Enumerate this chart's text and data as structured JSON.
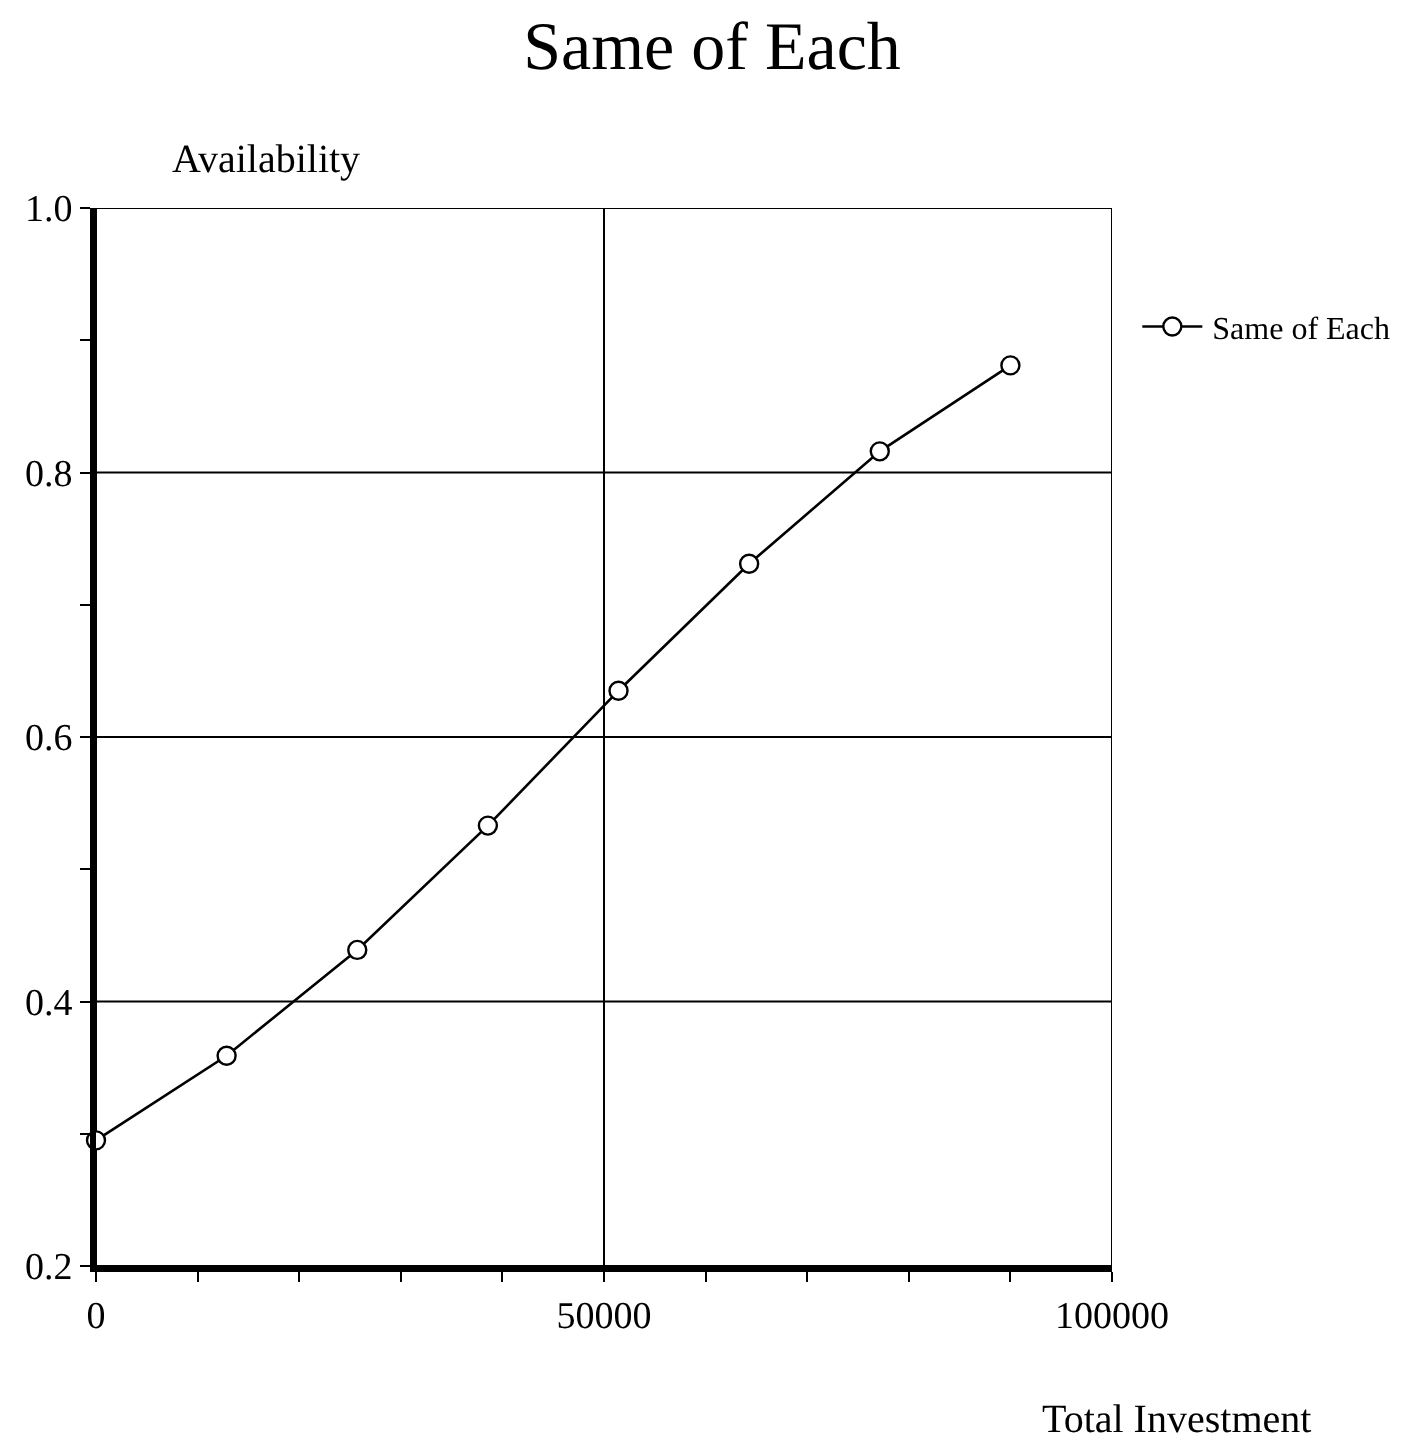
{
  "chart_data": {
    "type": "line",
    "title": "Same of Each",
    "xlabel": "Total Investment",
    "ylabel": "Availability",
    "x": [
      0,
      12857,
      25714,
      38571,
      51429,
      64286,
      77143,
      90000
    ],
    "series": [
      {
        "name": "Same of Each",
        "color": "#000000",
        "values": [
          0.295,
          0.359,
          0.439,
          0.533,
          0.635,
          0.731,
          0.816,
          0.881
        ]
      }
    ],
    "xlim": [
      0,
      100000
    ],
    "ylim": [
      0.2,
      1.0
    ],
    "xticks": [
      0,
      {
        "value": 10000,
        "label": null
      },
      {
        "value": 20000,
        "label": null
      },
      {
        "value": 30000,
        "label": null
      },
      {
        "value": 40000,
        "label": null
      },
      50000,
      {
        "value": 60000,
        "label": null
      },
      {
        "value": 70000,
        "label": null
      },
      {
        "value": 80000,
        "label": null
      },
      {
        "value": 90000,
        "label": null
      },
      100000
    ],
    "yticks": [
      "0.2",
      {
        "value": 0.3,
        "label": null
      },
      {
        "value": 0.4,
        "label": "0.4"
      },
      {
        "value": 0.5,
        "label": null
      },
      {
        "value": 0.6,
        "label": "0.6"
      },
      {
        "value": 0.7,
        "label": null
      },
      {
        "value": 0.8,
        "label": "0.8"
      },
      {
        "value": 0.9,
        "label": null
      },
      {
        "value": 1.0,
        "label": "1.0"
      }
    ],
    "grid": true,
    "legend": "top right",
    "marker": "circle",
    "line_style": "solid"
  }
}
